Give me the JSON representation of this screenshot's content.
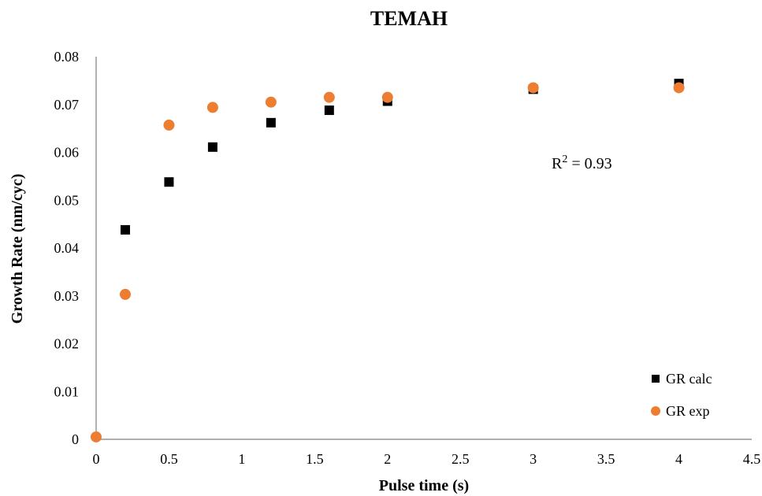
{
  "chart_data": {
    "type": "scatter",
    "title": "TEMAH",
    "xlabel": "Pulse time (s)",
    "ylabel": "Growth Rate (nm/cyc)",
    "xlim": [
      0,
      4.5
    ],
    "ylim": [
      0,
      0.08
    ],
    "x_ticks": [
      "0",
      "0.5",
      "1",
      "1.5",
      "2",
      "2.5",
      "3",
      "3.5",
      "4",
      "4.5"
    ],
    "y_ticks": [
      "0",
      "0.01",
      "0.02",
      "0.03",
      "0.04",
      "0.05",
      "0.06",
      "0.07",
      "0.08"
    ],
    "grid": false,
    "legend_position": "bottom-right",
    "annotation": {
      "text_main": "R",
      "text_sup": "2",
      "text_rest": " = 0.93"
    },
    "series": [
      {
        "name": "GR calc",
        "marker": "square",
        "color": "#000000",
        "x": [
          0.2,
          0.5,
          0.8,
          1.2,
          1.6,
          2.0,
          3.0,
          4.0
        ],
        "y": [
          0.0438,
          0.0538,
          0.0611,
          0.0662,
          0.0688,
          0.0707,
          0.0732,
          0.0744
        ]
      },
      {
        "name": "GR exp",
        "marker": "circle",
        "color": "#ED7D31",
        "x": [
          0,
          0.2,
          0.5,
          0.8,
          1.2,
          1.6,
          2.0,
          3.0,
          4.0
        ],
        "y": [
          0.0005,
          0.0303,
          0.0657,
          0.0694,
          0.0705,
          0.0715,
          0.0715,
          0.0735,
          0.0735
        ]
      }
    ]
  }
}
